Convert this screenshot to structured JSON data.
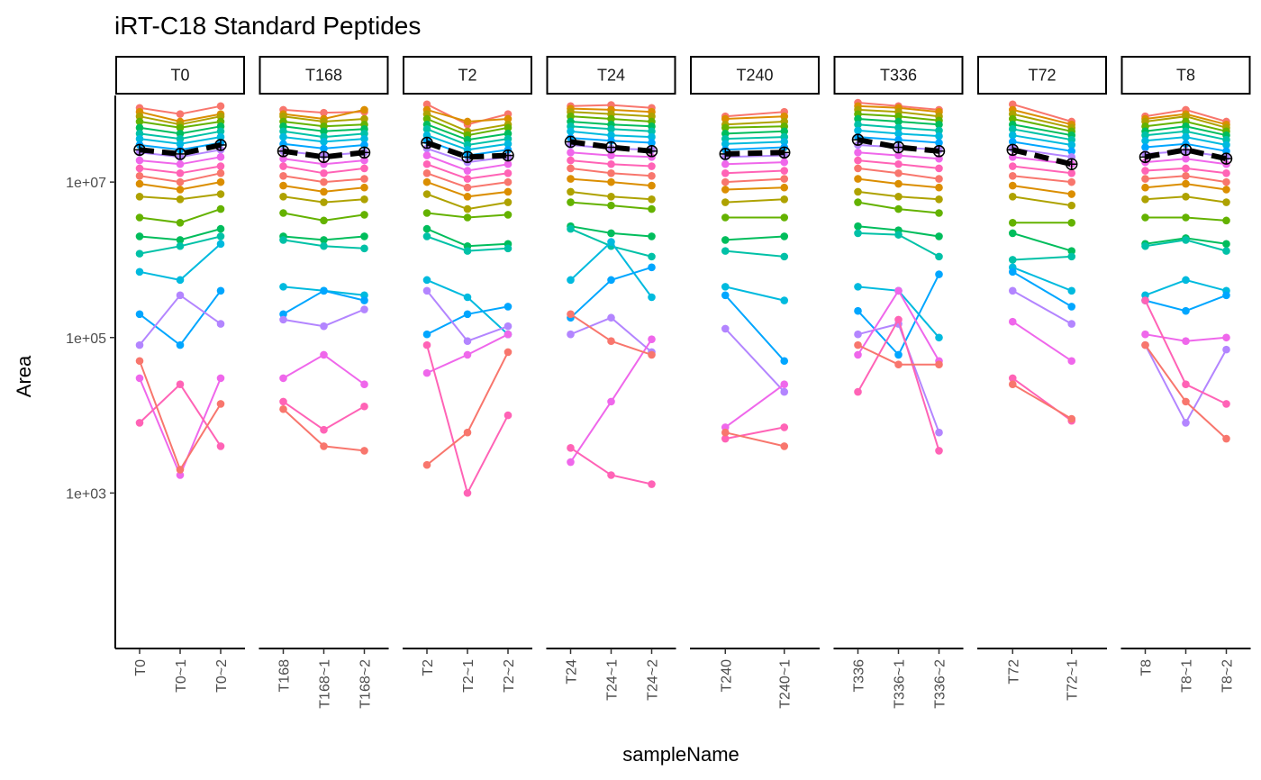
{
  "chart_data": {
    "type": "line",
    "title": "iRT-C18 Standard Peptides",
    "xlabel": "sampleName",
    "ylabel": "Area",
    "y_scale": "log10",
    "ylim": [
      10,
      130000000
    ],
    "y_ticks": [
      {
        "value": 1000,
        "label": "1e+03"
      },
      {
        "value": 100000,
        "label": "1e+05"
      },
      {
        "value": 10000000,
        "label": "1e+07"
      }
    ],
    "facets": [
      {
        "label": "T0",
        "samples": [
          "T0",
          "T0~1",
          "T0~2"
        ],
        "median": [
          26000000,
          23000000,
          30000000
        ]
      },
      {
        "label": "T168",
        "samples": [
          "T168",
          "T168~1",
          "T168~2"
        ],
        "median": [
          25000000,
          21000000,
          24000000
        ]
      },
      {
        "label": "T2",
        "samples": [
          "T2",
          "T2~1",
          "T2~2"
        ],
        "median": [
          32000000,
          21000000,
          22000000
        ]
      },
      {
        "label": "T24",
        "samples": [
          "T24",
          "T24~1",
          "T24~2"
        ],
        "median": [
          33000000,
          28000000,
          25000000
        ]
      },
      {
        "label": "T240",
        "samples": [
          "T240",
          "T240~1"
        ],
        "median": [
          23000000,
          24000000
        ]
      },
      {
        "label": "T336",
        "samples": [
          "T336",
          "T336~1",
          "T336~2"
        ],
        "median": [
          35000000,
          28000000,
          25000000
        ]
      },
      {
        "label": "T72",
        "samples": [
          "T72",
          "T72~1"
        ],
        "median": [
          26000000,
          17000000
        ]
      },
      {
        "label": "T8",
        "samples": [
          "T8",
          "T8~1",
          "T8~2"
        ],
        "median": [
          21000000,
          26000000,
          20000000
        ]
      }
    ],
    "series_colors": [
      "#F8766D",
      "#DB8E00",
      "#AEA200",
      "#64B200",
      "#00BD5C",
      "#00C1A7",
      "#00BADE",
      "#00A6FF",
      "#B385FF",
      "#EF67EB",
      "#FF63B6"
    ],
    "median_style": {
      "color": "#000000",
      "line": "dashed",
      "marker": "circle-plus"
    },
    "peptide_profiles": [
      [
        [
          90000000,
          75000000,
          95000000
        ],
        [
          85000000,
          78000000,
          80000000
        ],
        [
          100000000,
          55000000,
          75000000
        ],
        [
          95000000,
          98000000,
          90000000
        ],
        [
          70000000,
          80000000
        ],
        [
          105000000,
          95000000,
          85000000
        ],
        [
          100000000,
          60000000
        ],
        [
          70000000,
          85000000,
          60000000
        ]
      ],
      [
        [
          80000000,
          60000000,
          75000000
        ],
        [
          75000000,
          65000000,
          85000000
        ],
        [
          85000000,
          60000000,
          65000000
        ],
        [
          88000000,
          85000000,
          80000000
        ],
        [
          65000000,
          70000000
        ],
        [
          95000000,
          90000000,
          80000000
        ],
        [
          85000000,
          55000000
        ],
        [
          65000000,
          75000000,
          55000000
        ]
      ],
      [
        [
          70000000,
          55000000,
          70000000
        ],
        [
          70000000,
          60000000,
          65000000
        ],
        [
          75000000,
          45000000,
          55000000
        ],
        [
          80000000,
          75000000,
          70000000
        ],
        [
          55000000,
          60000000
        ],
        [
          85000000,
          80000000,
          70000000
        ],
        [
          75000000,
          50000000
        ],
        [
          60000000,
          70000000,
          50000000
        ]
      ],
      [
        [
          60000000,
          50000000,
          60000000
        ],
        [
          60000000,
          52000000,
          55000000
        ],
        [
          65000000,
          40000000,
          50000000
        ],
        [
          70000000,
          65000000,
          60000000
        ],
        [
          50000000,
          52000000
        ],
        [
          75000000,
          70000000,
          62000000
        ],
        [
          65000000,
          45000000
        ],
        [
          52000000,
          60000000,
          45000000
        ]
      ],
      [
        [
          50000000,
          42000000,
          52000000
        ],
        [
          52000000,
          45000000,
          48000000
        ],
        [
          55000000,
          35000000,
          42000000
        ],
        [
          60000000,
          55000000,
          52000000
        ],
        [
          42000000,
          45000000
        ],
        [
          65000000,
          60000000,
          55000000
        ],
        [
          55000000,
          40000000
        ],
        [
          45000000,
          52000000,
          40000000
        ]
      ],
      [
        [
          42000000,
          36000000,
          45000000
        ],
        [
          45000000,
          38000000,
          42000000
        ],
        [
          48000000,
          30000000,
          36000000
        ],
        [
          52000000,
          48000000,
          45000000
        ],
        [
          36000000,
          38000000
        ],
        [
          55000000,
          50000000,
          46000000
        ],
        [
          48000000,
          35000000
        ],
        [
          40000000,
          45000000,
          35000000
        ]
      ],
      [
        [
          36000000,
          31000000,
          38000000
        ],
        [
          38000000,
          33000000,
          36000000
        ],
        [
          40000000,
          26000000,
          31000000
        ],
        [
          45000000,
          40000000,
          38000000
        ],
        [
          31000000,
          33000000
        ],
        [
          46000000,
          42000000,
          39000000
        ],
        [
          40000000,
          30000000
        ],
        [
          34000000,
          38000000,
          30000000
        ]
      ],
      [
        [
          30000000,
          26000000,
          32000000
        ],
        [
          31000000,
          27000000,
          30000000
        ],
        [
          34000000,
          22000000,
          26000000
        ],
        [
          37000000,
          34000000,
          32000000
        ],
        [
          26000000,
          28000000
        ],
        [
          38000000,
          35000000,
          32000000
        ],
        [
          33000000,
          25000000
        ],
        [
          28000000,
          31000000,
          25000000
        ]
      ],
      [
        [
          24000000,
          21000000,
          26000000
        ],
        [
          25000000,
          22000000,
          24000000
        ],
        [
          27000000,
          18000000,
          21000000
        ],
        [
          30000000,
          27000000,
          26000000
        ],
        [
          21000000,
          22000000
        ],
        [
          30000000,
          28000000,
          26000000
        ],
        [
          27000000,
          21000000
        ],
        [
          23000000,
          25000000,
          21000000
        ]
      ],
      [
        [
          19000000,
          17000000,
          21000000
        ],
        [
          20000000,
          17000000,
          19000000
        ],
        [
          22000000,
          14000000,
          17000000
        ],
        [
          24000000,
          22000000,
          21000000
        ],
        [
          17000000,
          18000000
        ],
        [
          24000000,
          22000000,
          20000000
        ],
        [
          21000000,
          17000000
        ],
        [
          18000000,
          20000000,
          17000000
        ]
      ],
      [
        [
          15000000,
          13000000,
          16000000
        ],
        [
          16000000,
          13000000,
          15000000
        ],
        [
          17000000,
          11000000,
          13000000
        ],
        [
          19000000,
          17000000,
          16000000
        ],
        [
          13000000,
          14000000
        ],
        [
          19000000,
          17000000,
          15000000
        ],
        [
          16000000,
          13000000
        ],
        [
          14000000,
          15000000,
          13000000
        ]
      ],
      [
        [
          12000000,
          10000000,
          13000000
        ],
        [
          12000000,
          10000000,
          11000000
        ],
        [
          13000000,
          8500000,
          10000000
        ],
        [
          15000000,
          13000000,
          12000000
        ],
        [
          10000000,
          11000000
        ],
        [
          15000000,
          13000000,
          11000000
        ],
        [
          12000000,
          10000000
        ],
        [
          11000000,
          12000000,
          10000000
        ]
      ],
      [
        [
          9500000,
          8000000,
          10000000
        ],
        [
          9000000,
          7500000,
          8500000
        ],
        [
          10000000,
          6500000,
          7500000
        ],
        [
          11000000,
          10000000,
          9000000
        ],
        [
          8000000,
          8500000
        ],
        [
          11000000,
          9500000,
          8500000
        ],
        [
          9000000,
          7000000
        ],
        [
          8500000,
          9500000,
          8000000
        ]
      ],
      [
        [
          6500000,
          6000000,
          7000000
        ],
        [
          6500000,
          5500000,
          6000000
        ],
        [
          7000000,
          4500000,
          5500000
        ],
        [
          7500000,
          6500000,
          6000000
        ],
        [
          5500000,
          6000000
        ],
        [
          7500000,
          6500000,
          6000000
        ],
        [
          6500000,
          5000000
        ],
        [
          6000000,
          6500000,
          5500000
        ]
      ],
      [
        [
          3500000,
          3000000,
          4500000
        ],
        [
          4000000,
          3200000,
          3800000
        ],
        [
          4000000,
          3500000,
          3800000
        ],
        [
          5500000,
          5000000,
          4500000
        ],
        [
          3500000,
          3500000
        ],
        [
          5500000,
          4500000,
          4000000
        ],
        [
          3000000,
          3000000
        ],
        [
          3500000,
          3500000,
          3200000
        ]
      ],
      [
        [
          2000000,
          1800000,
          2500000
        ],
        [
          2000000,
          1800000,
          2000000
        ],
        [
          2500000,
          1500000,
          1600000
        ],
        [
          2700000,
          2200000,
          2000000
        ],
        [
          1800000,
          2000000
        ],
        [
          2700000,
          2400000,
          2000000
        ],
        [
          2200000,
          1300000
        ],
        [
          1600000,
          1900000,
          1600000
        ]
      ],
      [
        [
          1200000,
          1500000,
          2000000
        ],
        [
          1800000,
          1500000,
          1400000
        ],
        [
          2000000,
          1300000,
          1400000
        ],
        [
          2500000,
          1500000,
          1100000
        ],
        [
          1300000,
          1100000
        ],
        [
          2200000,
          2100000,
          1100000
        ],
        [
          1000000,
          1100000
        ],
        [
          1500000,
          1800000,
          1300000
        ]
      ],
      [
        [
          700000,
          550000,
          1600000
        ],
        [
          450000,
          400000,
          350000
        ],
        [
          550000,
          330000,
          110000
        ],
        [
          550000,
          1700000,
          330000
        ],
        [
          450000,
          300000
        ],
        [
          450000,
          400000,
          100000
        ],
        [
          800000,
          400000
        ],
        [
          350000,
          550000,
          400000
        ]
      ],
      [
        [
          200000,
          80000,
          400000
        ],
        [
          200000,
          400000,
          300000
        ],
        [
          110000,
          200000,
          250000
        ],
        [
          180000,
          550000,
          800000
        ],
        [
          350000,
          50000
        ],
        [
          220000,
          60000,
          650000
        ],
        [
          700000,
          250000
        ],
        [
          300000,
          220000,
          350000
        ]
      ],
      [
        [
          80000,
          350000,
          150000
        ],
        [
          170000,
          140000,
          230000
        ],
        [
          400000,
          90000,
          140000
        ],
        [
          110000,
          180000,
          65000
        ],
        [
          130000,
          20000
        ],
        [
          110000,
          150000,
          6000
        ],
        [
          400000,
          150000
        ],
        [
          80000,
          8000,
          70000
        ]
      ],
      [
        [
          30000,
          1700,
          30000
        ],
        [
          30000,
          60000,
          25000
        ],
        [
          35000,
          60000,
          110000
        ],
        [
          2500,
          15000,
          95000
        ],
        [
          7000,
          25000
        ],
        [
          60000,
          400000,
          50000
        ],
        [
          160000,
          50000
        ],
        [
          110000,
          90000,
          100000
        ]
      ],
      [
        [
          8000,
          25000,
          4000
        ],
        [
          15000,
          6500,
          13000
        ],
        [
          80000,
          1000,
          10000
        ],
        [
          3800,
          1700,
          1300
        ],
        [
          5000,
          7000
        ],
        [
          20000,
          170000,
          3500
        ],
        [
          30000,
          8500
        ],
        [
          300000,
          25000,
          14000
        ]
      ],
      [
        [
          50000,
          2000,
          14000
        ],
        [
          12000,
          4000,
          3500
        ],
        [
          2300,
          6000,
          65000
        ],
        [
          200000,
          90000,
          60000
        ],
        [
          6000,
          4000
        ],
        [
          80000,
          45000,
          45000
        ],
        [
          25000,
          9000
        ],
        [
          80000,
          15000,
          5000
        ]
      ]
    ]
  }
}
